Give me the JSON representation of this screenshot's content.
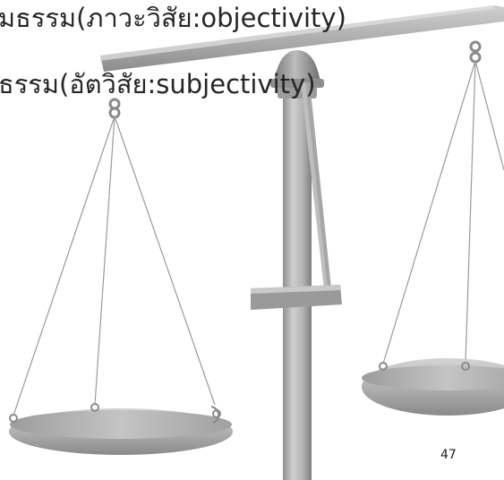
{
  "slide": {
    "text_lines": [
      "มธรรม(ภาวะวิสัย:objectivity)",
      "ธรรม(อัตวิสัย:subjectivity)"
    ],
    "page_number": "47"
  },
  "illustration": {
    "name": "balance-scale-icon",
    "colors": {
      "metal_light": "#c8c8c8",
      "metal_mid": "#a9a9a9",
      "metal_dark": "#7d7d7d",
      "string": "#9a9a9a",
      "text": "#262626"
    }
  }
}
